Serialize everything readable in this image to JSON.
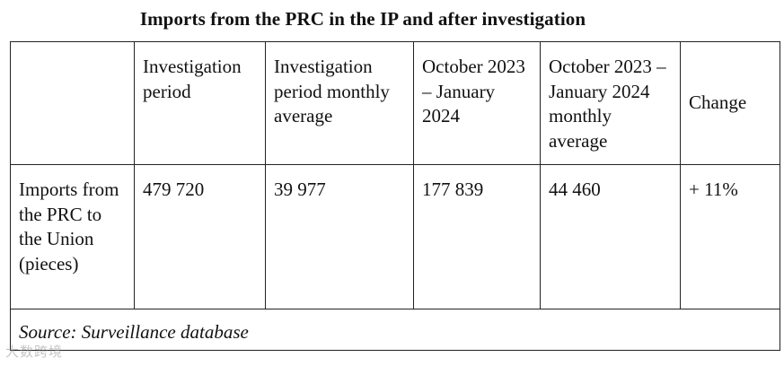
{
  "title": "Imports from the PRC in the IP and after investigation",
  "table": {
    "headers": [
      "",
      "Investigation period",
      "Investigation period monthly average",
      "October 2023 – January 2024",
      "October 2023 – January 2024 monthly average",
      "Change"
    ],
    "row": [
      "Imports from the PRC to the Union (pieces)",
      "479 720",
      "39 977",
      "177 839",
      "44 460",
      "+ 11%"
    ],
    "source": "Source: Surveillance database"
  },
  "watermark": "大数跨境"
}
